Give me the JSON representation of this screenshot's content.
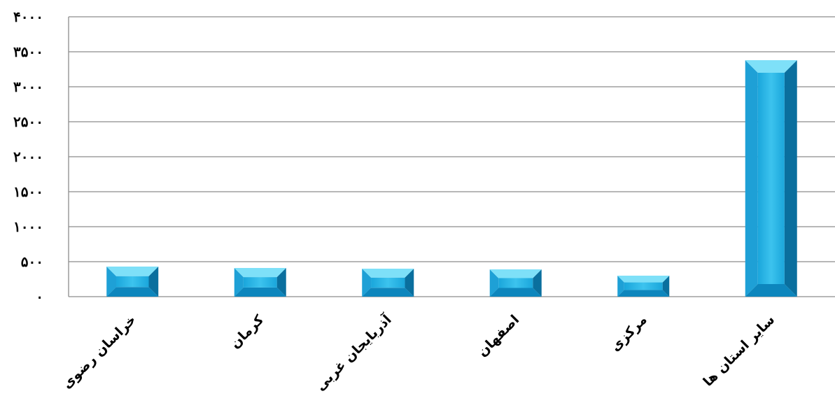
{
  "chart_data": {
    "type": "bar",
    "categories": [
      "خراسان رضوی",
      "کرمان",
      "آذربایجان غربی",
      "اصفهان",
      "مرکزی",
      "سایر استان ها"
    ],
    "values": [
      430,
      410,
      400,
      390,
      300,
      3380
    ],
    "ylim": [
      0,
      4000
    ],
    "y_ticks": [
      0,
      500,
      1000,
      1500,
      2000,
      2500,
      3000,
      3500,
      4000
    ],
    "y_tick_labels": [
      "۰",
      "۵۰۰",
      "۱۰۰۰",
      "۱۵۰۰",
      "۲۰۰۰",
      "۲۵۰۰",
      "۳۰۰۰",
      "۳۵۰۰",
      "۴۰۰۰"
    ],
    "grid": true,
    "legend": "none",
    "bar_color": "#29b8e8",
    "bar_color_light": "#7ee0f8",
    "bar_color_dark": "#0a6f9e"
  }
}
